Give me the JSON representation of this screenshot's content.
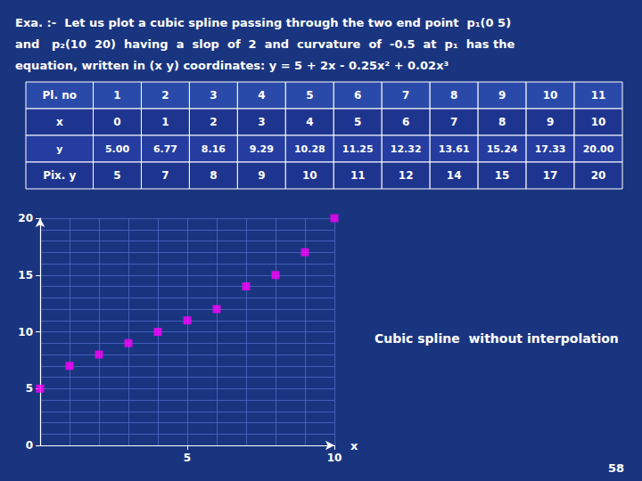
{
  "chart_data": {
    "type": "scatter",
    "title": [
      "Exa. :-  Let us plot a cubic spline passing through the two end point  p₁(0 5)",
      "and   p₂(10  20)  having  a  slop  of  2  and  curvature  of  -0.5  at  p₁  has the",
      "equation, written in (x y) coordinates: y = 5 + 2x - 0.25x² + 0.02x³"
    ],
    "table": {
      "rows": [
        [
          "Pl. no",
          "1",
          "2",
          "3",
          "4",
          "5",
          "6",
          "7",
          "8",
          "9",
          "10",
          "11"
        ],
        [
          "x",
          "0",
          "1",
          "2",
          "3",
          "4",
          "5",
          "6",
          "7",
          "8",
          "9",
          "10"
        ],
        [
          "y",
          "5.00",
          "6.77",
          "8.16",
          "9.29",
          "10.28",
          "11.25",
          "12.32",
          "13.61",
          "15.24",
          "17.33",
          "20.00"
        ],
        [
          "Pix. y",
          "5",
          "7",
          "8",
          "9",
          "10",
          "11",
          "12",
          "14",
          "15",
          "17",
          "20"
        ]
      ]
    },
    "x": [
      0,
      1,
      2,
      3,
      4,
      5,
      6,
      7,
      8,
      9,
      10
    ],
    "values": [
      5,
      7,
      8,
      9,
      10,
      11,
      12,
      14,
      15,
      17,
      20
    ],
    "color": "#ff00ff",
    "marker": "square",
    "xlabel": "x",
    "xlim": [
      0,
      10
    ],
    "ylim": [
      0,
      20
    ],
    "xticks": [
      5,
      10
    ],
    "yticks": [
      0,
      5,
      10,
      15,
      20
    ],
    "grid": true,
    "annotations": [
      "Cubic spline  without interpolation",
      "58"
    ]
  }
}
